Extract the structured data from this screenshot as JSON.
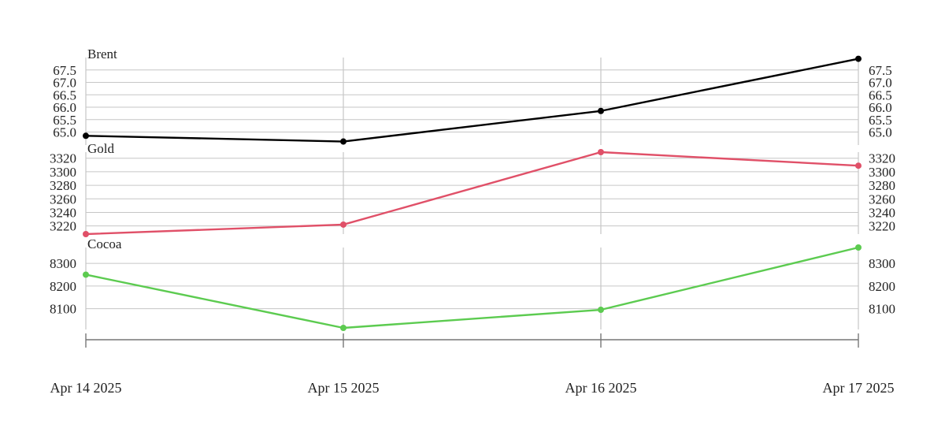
{
  "chart_data": {
    "type": "line",
    "x": [
      "Apr 14 2025",
      "Apr 15 2025",
      "Apr 16 2025",
      "Apr 17 2025"
    ],
    "panels": [
      {
        "name": "Brent",
        "color": "#000000",
        "values": [
          64.85,
          64.62,
          65.85,
          67.95
        ],
        "ylim": [
          64.7,
          68.0
        ],
        "ticks": [
          "65.0",
          "65.5",
          "66.0",
          "66.5",
          "67.0",
          "67.5"
        ]
      },
      {
        "name": "Gold",
        "color": "#e05068",
        "values": [
          3208,
          3222,
          3329,
          3309
        ],
        "ylim": [
          3208,
          3329
        ],
        "ticks": [
          "3220",
          "3240",
          "3260",
          "3280",
          "3300",
          "3320"
        ]
      },
      {
        "name": "Cocoa",
        "color": "#5ccb50",
        "values": [
          8250,
          8015,
          8095,
          8370
        ],
        "ylim": [
          8015,
          8370
        ],
        "ticks": [
          "8100",
          "8200",
          "8300"
        ]
      }
    ],
    "grid": true,
    "legend": "none"
  }
}
